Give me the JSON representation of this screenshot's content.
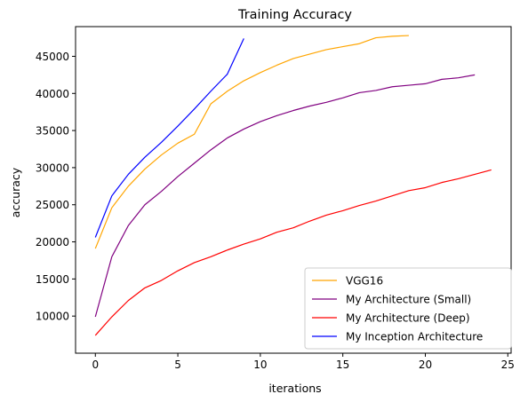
{
  "chart_data": {
    "type": "line",
    "title": "Training Accuracy",
    "xlabel": "iterations",
    "ylabel": "accuracy",
    "xlim": [
      -1.2,
      25.2
    ],
    "ylim": [
      5000,
      49000
    ],
    "x_ticks": [
      0,
      5,
      10,
      15,
      20,
      25
    ],
    "y_ticks": [
      10000,
      15000,
      20000,
      25000,
      30000,
      35000,
      40000,
      45000
    ],
    "grid": false,
    "legend_position": "lower-right",
    "series": [
      {
        "name": "VGG16",
        "color": "#ffa500",
        "x": [
          0,
          1,
          2,
          3,
          4,
          5,
          6,
          7,
          8,
          9,
          10,
          11,
          12,
          13,
          14,
          15,
          16,
          17,
          18,
          19
        ],
        "values": [
          19100,
          24600,
          27500,
          29800,
          31700,
          33300,
          34500,
          38600,
          40300,
          41700,
          42800,
          43800,
          44700,
          45300,
          45900,
          46300,
          46700,
          47500,
          47700,
          47800
        ]
      },
      {
        "name": "My Architecture (Small)",
        "color": "#800080",
        "x": [
          0,
          1,
          2,
          3,
          4,
          5,
          6,
          7,
          8,
          9,
          10,
          11,
          12,
          13,
          14,
          15,
          16,
          17,
          18,
          19,
          20,
          21,
          22,
          23
        ],
        "values": [
          9900,
          18000,
          22200,
          25000,
          26800,
          28800,
          30600,
          32400,
          34000,
          35200,
          36200,
          37000,
          37700,
          38300,
          38800,
          39400,
          40100,
          40400,
          40900,
          41100,
          41300,
          41900,
          42100,
          42500
        ]
      },
      {
        "name": "My Architecture (Deep)",
        "color": "#ff0000",
        "x": [
          0,
          1,
          2,
          3,
          4,
          5,
          6,
          7,
          8,
          9,
          10,
          11,
          12,
          13,
          14,
          15,
          16,
          17,
          18,
          19,
          20,
          21,
          22,
          23,
          24
        ],
        "values": [
          7400,
          9900,
          12100,
          13800,
          14800,
          16100,
          17200,
          18000,
          18900,
          19700,
          20400,
          21300,
          21900,
          22800,
          23600,
          24200,
          24900,
          25500,
          26200,
          26900,
          27300,
          28000,
          28500,
          29100,
          29700
        ]
      },
      {
        "name": "My Inception Architecture",
        "color": "#0000ff",
        "x": [
          0,
          1,
          2,
          3,
          4,
          5,
          6,
          7,
          8,
          9
        ],
        "values": [
          20600,
          26200,
          29100,
          31400,
          33400,
          35600,
          37900,
          40300,
          42600,
          47400
        ]
      }
    ]
  }
}
